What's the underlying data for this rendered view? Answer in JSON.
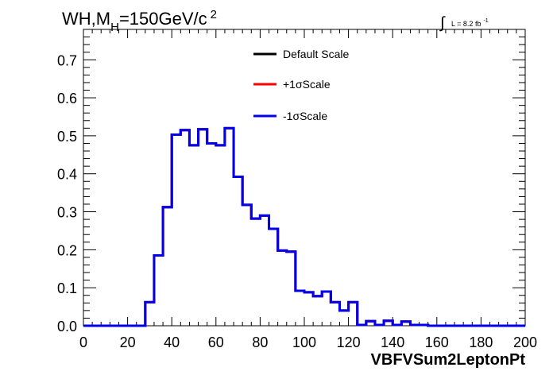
{
  "chart_data": {
    "type": "histogram",
    "title_parts": {
      "wh": "WH,M",
      "sub": "H",
      "mass": "=150GeV/c",
      "sup": "2"
    },
    "lumi_parts": {
      "integral": "∫",
      "text": "L = 8.2 fb",
      "sup": "-1"
    },
    "xlabel": "VBFVSum2LeptonPt",
    "ylabel": "",
    "xlim": [
      0,
      200
    ],
    "ylim": [
      0,
      0.78
    ],
    "x_ticks": [
      "0",
      "20",
      "40",
      "60",
      "80",
      "100",
      "120",
      "140",
      "160",
      "180",
      "200"
    ],
    "y_ticks": [
      "0.0",
      "0.1",
      "0.2",
      "0.3",
      "0.4",
      "0.5",
      "0.6",
      "0.7"
    ],
    "bin_width": 4,
    "bin_start": 0,
    "legend_position": "top-center",
    "series": [
      {
        "name": "Default Scale",
        "color": "#000000",
        "values": [
          0,
          0,
          0,
          0,
          0,
          0,
          0,
          0.062,
          0.185,
          0.312,
          0.503,
          0.515,
          0.475,
          0.517,
          0.48,
          0.475,
          0.52,
          0.392,
          0.318,
          0.282,
          0.29,
          0.255,
          0.198,
          0.195,
          0.092,
          0.088,
          0.078,
          0.09,
          0.062,
          0.04,
          0.062,
          0.002,
          0.012,
          0.002,
          0.013,
          0.002,
          0.011,
          0.002,
          0.002,
          0,
          0,
          0,
          0,
          0,
          0,
          0,
          0,
          0,
          0,
          0
        ]
      },
      {
        "name": "+1σScale",
        "color": "#ff0000",
        "values": [
          0,
          0,
          0,
          0,
          0,
          0,
          0,
          0.062,
          0.185,
          0.312,
          0.503,
          0.515,
          0.475,
          0.517,
          0.48,
          0.475,
          0.52,
          0.392,
          0.318,
          0.282,
          0.29,
          0.255,
          0.198,
          0.195,
          0.092,
          0.088,
          0.078,
          0.09,
          0.062,
          0.04,
          0.062,
          0.002,
          0.012,
          0.002,
          0.013,
          0.002,
          0.011,
          0.002,
          0.002,
          0,
          0,
          0,
          0,
          0,
          0,
          0,
          0,
          0,
          0,
          0
        ]
      },
      {
        "name": "-1σScale",
        "color": "#0000ee",
        "values": [
          0,
          0,
          0,
          0,
          0,
          0,
          0,
          0.062,
          0.185,
          0.312,
          0.503,
          0.515,
          0.475,
          0.517,
          0.48,
          0.475,
          0.52,
          0.392,
          0.318,
          0.282,
          0.29,
          0.255,
          0.198,
          0.195,
          0.092,
          0.088,
          0.078,
          0.09,
          0.062,
          0.04,
          0.062,
          0.002,
          0.012,
          0.002,
          0.013,
          0.002,
          0.011,
          0.002,
          0.002,
          0,
          0,
          0,
          0,
          0,
          0,
          0,
          0,
          0,
          0,
          0
        ]
      }
    ]
  }
}
